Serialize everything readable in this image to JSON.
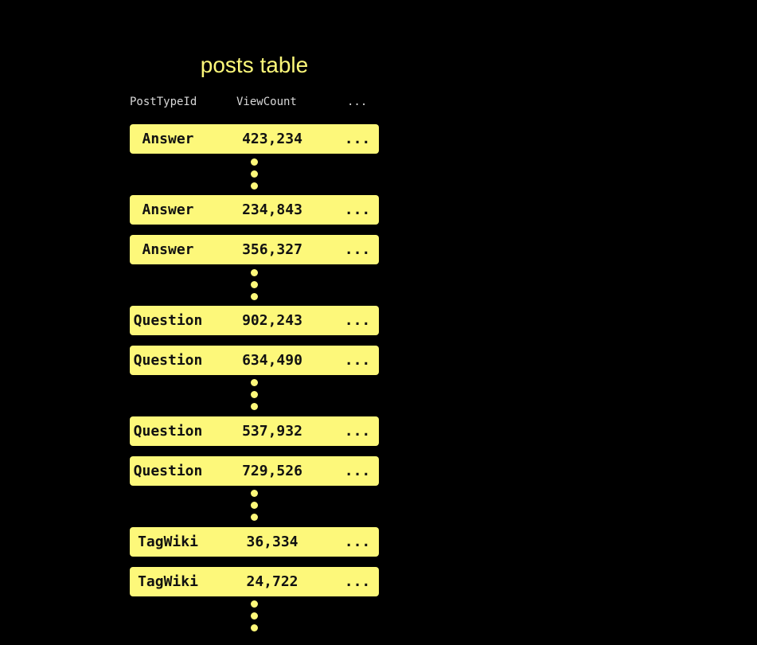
{
  "title": "posts table",
  "columns": [
    "PostTypeId",
    "ViewCount",
    "..."
  ],
  "rows": [
    {
      "type": "Answer",
      "views": "423,234",
      "more": "..."
    },
    {
      "type": "Answer",
      "views": "234,843",
      "more": "..."
    },
    {
      "type": "Answer",
      "views": "356,327",
      "more": "..."
    },
    {
      "type": "Question",
      "views": "902,243",
      "more": "..."
    },
    {
      "type": "Question",
      "views": "634,490",
      "more": "..."
    },
    {
      "type": "Question",
      "views": "537,932",
      "more": "..."
    },
    {
      "type": "Question",
      "views": "729,526",
      "more": "..."
    },
    {
      "type": "TagWiki",
      "views": "36,334",
      "more": "..."
    },
    {
      "type": "TagWiki",
      "views": "24,722",
      "more": "..."
    }
  ],
  "colors": {
    "accent": "#fdf87a",
    "background": "#000000"
  }
}
